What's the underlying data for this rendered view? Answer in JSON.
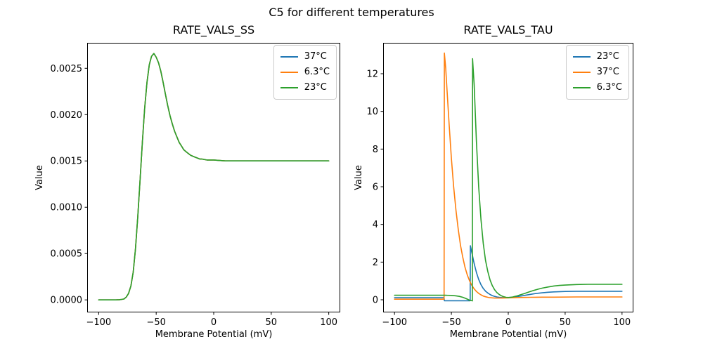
{
  "figure": {
    "title": "C5 for different temperatures",
    "background": "#ffffff"
  },
  "chart_data": [
    {
      "type": "line",
      "title": "RATE_VALS_SS",
      "xlabel": "Membrane Potential (mV)",
      "ylabel": "Value",
      "xlim": [
        -110,
        110
      ],
      "ylim": [
        -0.000135,
        0.002775
      ],
      "grid": false,
      "legend_position": "upper right",
      "xticks": [
        {
          "v": -100,
          "label": "−100"
        },
        {
          "v": -50,
          "label": "−50"
        },
        {
          "v": 0,
          "label": "0"
        },
        {
          "v": 50,
          "label": "50"
        },
        {
          "v": 100,
          "label": "100"
        }
      ],
      "yticks": [
        {
          "v": 0.0,
          "label": "0.0000"
        },
        {
          "v": 0.0005,
          "label": "0.0005"
        },
        {
          "v": 0.001,
          "label": "0.0010"
        },
        {
          "v": 0.0015,
          "label": "0.0015"
        },
        {
          "v": 0.002,
          "label": "0.0020"
        },
        {
          "v": 0.0025,
          "label": "0.0025"
        }
      ],
      "note": "All three temperature curves coincide exactly in this panel; peak ≈0.00266 at −52 mV, asymptote ≈0.0015.",
      "shared_points": [
        [
          -100,
          0
        ],
        [
          -90,
          0
        ],
        [
          -85,
          0
        ],
        [
          -82,
          2e-06
        ],
        [
          -80,
          5e-06
        ],
        [
          -78,
          1e-05
        ],
        [
          -76,
          3e-05
        ],
        [
          -74,
          7e-05
        ],
        [
          -72,
          0.00015
        ],
        [
          -70,
          0.0003
        ],
        [
          -68,
          0.00055
        ],
        [
          -66,
          0.0009
        ],
        [
          -64,
          0.0013
        ],
        [
          -62,
          0.0017
        ],
        [
          -60,
          0.00207
        ],
        [
          -58,
          0.00235
        ],
        [
          -56,
          0.00254
        ],
        [
          -54,
          0.00263
        ],
        [
          -52,
          0.00266
        ],
        [
          -50,
          0.00262
        ],
        [
          -48,
          0.00256
        ],
        [
          -46,
          0.00247
        ],
        [
          -44,
          0.00235
        ],
        [
          -42,
          0.00222
        ],
        [
          -40,
          0.0021
        ],
        [
          -38,
          0.00199
        ],
        [
          -36,
          0.0019
        ],
        [
          -34,
          0.00182
        ],
        [
          -32,
          0.00176
        ],
        [
          -30,
          0.0017
        ],
        [
          -28,
          0.00166
        ],
        [
          -26,
          0.00162
        ],
        [
          -24,
          0.0016
        ],
        [
          -22,
          0.00158
        ],
        [
          -20,
          0.00156
        ],
        [
          -18,
          0.00155
        ],
        [
          -16,
          0.00154
        ],
        [
          -14,
          0.00153
        ],
        [
          -12,
          0.00152
        ],
        [
          -10,
          0.00152
        ],
        [
          -6,
          0.00151
        ],
        [
          -2,
          0.00151
        ],
        [
          0,
          0.00151
        ],
        [
          10,
          0.0015
        ],
        [
          20,
          0.0015
        ],
        [
          40,
          0.0015
        ],
        [
          60,
          0.0015
        ],
        [
          80,
          0.0015
        ],
        [
          100,
          0.0015
        ]
      ],
      "series": [
        {
          "name": "37°C",
          "color": "#1f77b4"
        },
        {
          "name": "6.3°C",
          "color": "#ff7f0e"
        },
        {
          "name": "23°C",
          "color": "#2ca02c"
        }
      ]
    },
    {
      "type": "line",
      "title": "RATE_VALS_TAU",
      "xlabel": "Membrane Potential (mV)",
      "ylabel": "Value",
      "xlim": [
        -110,
        110
      ],
      "ylim": [
        -0.67,
        13.64
      ],
      "grid": false,
      "legend_position": "upper right",
      "xticks": [
        {
          "v": -100,
          "label": "−100"
        },
        {
          "v": -50,
          "label": "−50"
        },
        {
          "v": 0,
          "label": "0"
        },
        {
          "v": 50,
          "label": "50"
        },
        {
          "v": 100,
          "label": "100"
        }
      ],
      "yticks": [
        {
          "v": 0,
          "label": "0"
        },
        {
          "v": 2,
          "label": "2"
        },
        {
          "v": 4,
          "label": "4"
        },
        {
          "v": 6,
          "label": "6"
        },
        {
          "v": 8,
          "label": "8"
        },
        {
          "v": 10,
          "label": "10"
        },
        {
          "v": 12,
          "label": "12"
        }
      ],
      "note": "Sharp spikes: 37°C peaks ≈13.1 at −56 mV; 6.3°C peaks ≈12.8 at −31 mV; 23°C peaks ≈2.9 at −33 mV. Right-side plateaus: 6.3°C ≈0.82, 23°C ≈0.45, 37°C ≈0.15.",
      "series": [
        {
          "name": "23°C",
          "color": "#1f77b4",
          "points": [
            [
              -100,
              0.11
            ],
            [
              -80,
              0.11
            ],
            [
              -70,
              0.11
            ],
            [
              -60,
              0.11
            ],
            [
              -56.4,
              0.11
            ],
            [
              -56.2,
              -0.05
            ],
            [
              -50,
              -0.05
            ],
            [
              -45,
              -0.05
            ],
            [
              -40,
              -0.05
            ],
            [
              -33.5,
              -0.05
            ],
            [
              -33.3,
              2.87
            ],
            [
              -32,
              2.5
            ],
            [
              -30,
              1.92
            ],
            [
              -28,
              1.45
            ],
            [
              -26,
              1.08
            ],
            [
              -24,
              0.8
            ],
            [
              -22,
              0.6
            ],
            [
              -20,
              0.46
            ],
            [
              -18,
              0.36
            ],
            [
              -16,
              0.28
            ],
            [
              -14,
              0.22
            ],
            [
              -12,
              0.18
            ],
            [
              -10,
              0.15
            ],
            [
              -8,
              0.13
            ],
            [
              -6,
              0.12
            ],
            [
              -4,
              0.11
            ],
            [
              -2,
              0.11
            ],
            [
              0,
              0.12
            ],
            [
              4,
              0.14
            ],
            [
              8,
              0.17
            ],
            [
              12,
              0.21
            ],
            [
              16,
              0.25
            ],
            [
              20,
              0.29
            ],
            [
              25,
              0.34
            ],
            [
              30,
              0.37
            ],
            [
              35,
              0.4
            ],
            [
              40,
              0.42
            ],
            [
              50,
              0.44
            ],
            [
              60,
              0.45
            ],
            [
              80,
              0.45
            ],
            [
              100,
              0.45
            ]
          ]
        },
        {
          "name": "37°C",
          "color": "#ff7f0e",
          "points": [
            [
              -100,
              0.03
            ],
            [
              -80,
              0.03
            ],
            [
              -70,
              0.03
            ],
            [
              -60,
              0.03
            ],
            [
              -56.4,
              0.03
            ],
            [
              -56.2,
              13.1
            ],
            [
              -55,
              12.3
            ],
            [
              -54,
              11.3
            ],
            [
              -52,
              9.3
            ],
            [
              -50,
              7.5
            ],
            [
              -48,
              6.0
            ],
            [
              -46,
              4.75
            ],
            [
              -44,
              3.75
            ],
            [
              -42,
              2.9
            ],
            [
              -40,
              2.25
            ],
            [
              -38,
              1.72
            ],
            [
              -36,
              1.32
            ],
            [
              -34,
              1.0
            ],
            [
              -32,
              0.76
            ],
            [
              -30,
              0.58
            ],
            [
              -28,
              0.44
            ],
            [
              -26,
              0.34
            ],
            [
              -24,
              0.26
            ],
            [
              -22,
              0.2
            ],
            [
              -20,
              0.16
            ],
            [
              -18,
              0.13
            ],
            [
              -16,
              0.11
            ],
            [
              -14,
              0.1
            ],
            [
              -12,
              0.09
            ],
            [
              -10,
              0.09
            ],
            [
              -5,
              0.09
            ],
            [
              0,
              0.1
            ],
            [
              5,
              0.11
            ],
            [
              10,
              0.12
            ],
            [
              20,
              0.13
            ],
            [
              30,
              0.14
            ],
            [
              40,
              0.14
            ],
            [
              60,
              0.15
            ],
            [
              80,
              0.15
            ],
            [
              100,
              0.15
            ]
          ]
        },
        {
          "name": "6.3°C",
          "color": "#2ca02c",
          "points": [
            [
              -100,
              0.24
            ],
            [
              -80,
              0.24
            ],
            [
              -70,
              0.24
            ],
            [
              -60,
              0.24
            ],
            [
              -55,
              0.24
            ],
            [
              -50,
              0.23
            ],
            [
              -46,
              0.21
            ],
            [
              -43,
              0.18
            ],
            [
              -40,
              0.13
            ],
            [
              -37,
              0.06
            ],
            [
              -34,
              -0.02
            ],
            [
              -32,
              -0.05
            ],
            [
              -31.6,
              -0.06
            ],
            [
              -31.4,
              12.8
            ],
            [
              -30,
              11.4
            ],
            [
              -28,
              8.4
            ],
            [
              -26,
              6.0
            ],
            [
              -24,
              4.25
            ],
            [
              -22,
              3.0
            ],
            [
              -20,
              2.1
            ],
            [
              -18,
              1.5
            ],
            [
              -16,
              1.05
            ],
            [
              -14,
              0.75
            ],
            [
              -12,
              0.53
            ],
            [
              -10,
              0.38
            ],
            [
              -8,
              0.28
            ],
            [
              -6,
              0.21
            ],
            [
              -4,
              0.16
            ],
            [
              -2,
              0.13
            ],
            [
              0,
              0.12
            ],
            [
              2,
              0.13
            ],
            [
              4,
              0.15
            ],
            [
              6,
              0.18
            ],
            [
              8,
              0.21
            ],
            [
              10,
              0.25
            ],
            [
              14,
              0.33
            ],
            [
              18,
              0.41
            ],
            [
              22,
              0.49
            ],
            [
              26,
              0.56
            ],
            [
              30,
              0.62
            ],
            [
              35,
              0.68
            ],
            [
              40,
              0.73
            ],
            [
              45,
              0.76
            ],
            [
              50,
              0.78
            ],
            [
              60,
              0.81
            ],
            [
              70,
              0.82
            ],
            [
              80,
              0.82
            ],
            [
              100,
              0.82
            ]
          ]
        }
      ]
    }
  ]
}
